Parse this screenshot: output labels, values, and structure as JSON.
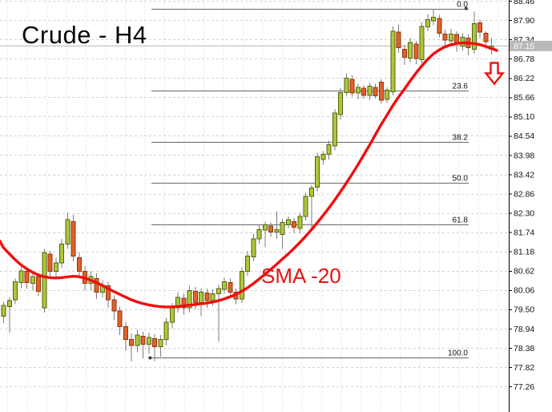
{
  "chart_label": "Crude - H4",
  "sma": {
    "label": "SMA -20",
    "period": 20,
    "color": "#f20d0d"
  },
  "price_axis": {
    "labels": [
      "88.46",
      "87.90",
      "87.34",
      "86.78",
      "86.22",
      "85.66",
      "85.10",
      "84.54",
      "83.98",
      "83.42",
      "82.86",
      "82.30",
      "81.74",
      "81.18",
      "80.62",
      "80.06",
      "79.50",
      "78.94",
      "78.38",
      "77.82",
      "77.26"
    ],
    "current_price": "87.15",
    "badge_bg": "#b9b9b9",
    "badge_text_color": "#ffffff"
  },
  "fibonacci": {
    "high": 88.24,
    "low": 78.09,
    "line_color": "#686868",
    "levels": [
      {
        "label": "0.0",
        "price": 88.24
      },
      {
        "label": "23.6",
        "price": 85.85
      },
      {
        "label": "38.2",
        "price": 84.36
      },
      {
        "label": "50.0",
        "price": 83.17
      },
      {
        "label": "61.8",
        "price": 81.97
      },
      {
        "label": "100.0",
        "price": 78.09
      }
    ]
  },
  "annotations": {
    "down_arrow": {
      "meaning": "sell-signal arrow below last candles",
      "color": "#e81212"
    }
  },
  "colors": {
    "background": "#ffffff",
    "bull": "#aac93a",
    "bull_border": "#55610f",
    "bear": "#e2612a",
    "bear_border": "#92350c",
    "wick": "#7b7b7b",
    "grid": "#d2d2d2",
    "current_price_line": "#c4c4c4",
    "axis_line": "#000000",
    "text": "#111111"
  },
  "chart_data": {
    "type": "candlestick",
    "symbol": "Crude",
    "timeframe": "H4",
    "title": "Crude - H4",
    "current_price": 87.15,
    "y_axis": {
      "first_label": 88.46,
      "last_label": 77.26,
      "step": 0.56
    },
    "legend": [
      "SMA -20"
    ],
    "candles": [
      [
        79.3,
        79.72,
        79.1,
        79.62
      ],
      [
        79.58,
        79.85,
        78.82,
        79.75
      ],
      [
        79.78,
        80.4,
        79.65,
        80.3
      ],
      [
        80.28,
        80.72,
        80.12,
        80.62
      ],
      [
        80.6,
        80.7,
        80.1,
        80.28
      ],
      [
        80.25,
        80.58,
        80.05,
        80.45
      ],
      [
        80.45,
        80.55,
        79.88,
        80.02
      ],
      [
        79.55,
        81.25,
        79.4,
        81.15
      ],
      [
        81.1,
        81.2,
        80.45,
        80.6
      ],
      [
        80.6,
        81.0,
        80.4,
        80.85
      ],
      [
        80.85,
        81.55,
        80.7,
        81.4
      ],
      [
        81.4,
        82.3,
        81.25,
        82.1
      ],
      [
        82.05,
        82.25,
        80.9,
        81.05
      ],
      [
        81.0,
        81.15,
        80.4,
        80.6
      ],
      [
        80.6,
        80.75,
        80.05,
        80.25
      ],
      [
        80.25,
        80.6,
        80.05,
        80.45
      ],
      [
        80.4,
        80.55,
        79.8,
        80.0
      ],
      [
        80.0,
        80.35,
        79.85,
        80.2
      ],
      [
        80.18,
        80.3,
        79.55,
        79.78
      ],
      [
        79.78,
        79.9,
        79.2,
        79.45
      ],
      [
        79.45,
        79.58,
        78.75,
        79.0
      ],
      [
        79.0,
        79.12,
        78.3,
        78.62
      ],
      [
        78.62,
        78.8,
        77.98,
        78.45
      ],
      [
        78.45,
        78.9,
        78.25,
        78.75
      ],
      [
        78.72,
        78.85,
        78.08,
        78.48
      ],
      [
        78.48,
        78.82,
        78.2,
        78.68
      ],
      [
        78.65,
        78.78,
        78.0,
        78.42
      ],
      [
        78.42,
        78.75,
        78.12,
        78.62
      ],
      [
        78.62,
        79.25,
        78.45,
        79.12
      ],
      [
        79.12,
        79.68,
        78.95,
        79.55
      ],
      [
        79.55,
        80.0,
        79.4,
        79.85
      ],
      [
        79.82,
        79.95,
        79.35,
        79.55
      ],
      [
        79.55,
        80.18,
        79.42,
        80.05
      ],
      [
        80.02,
        80.15,
        79.5,
        79.7
      ],
      [
        79.7,
        80.12,
        79.3,
        80.0
      ],
      [
        79.98,
        80.1,
        79.55,
        79.75
      ],
      [
        79.75,
        80.08,
        79.6,
        79.95
      ],
      [
        79.95,
        80.22,
        78.55,
        80.1
      ],
      [
        80.08,
        80.42,
        79.95,
        80.3
      ],
      [
        80.28,
        80.4,
        79.85,
        80.0
      ],
      [
        80.0,
        80.1,
        79.65,
        79.8
      ],
      [
        79.8,
        80.72,
        79.68,
        80.6
      ],
      [
        80.6,
        81.18,
        80.48,
        81.05
      ],
      [
        81.02,
        81.7,
        80.9,
        81.55
      ],
      [
        81.55,
        81.95,
        81.4,
        81.82
      ],
      [
        81.8,
        82.05,
        81.3,
        81.95
      ],
      [
        81.92,
        82.02,
        81.6,
        81.75
      ],
      [
        81.75,
        82.35,
        81.55,
        81.82
      ],
      [
        81.68,
        82.12,
        81.25,
        82.02
      ],
      [
        81.95,
        82.2,
        81.85,
        82.1
      ],
      [
        82.05,
        82.15,
        81.72,
        81.88
      ],
      [
        81.85,
        82.3,
        81.7,
        82.2
      ],
      [
        82.2,
        82.88,
        82.08,
        82.78
      ],
      [
        82.78,
        83.12,
        81.78,
        83.02
      ],
      [
        83.05,
        84.05,
        82.92,
        83.93
      ],
      [
        83.85,
        84.1,
        83.7,
        84.0
      ],
      [
        84.0,
        84.4,
        83.85,
        84.28
      ],
      [
        84.25,
        85.32,
        84.12,
        85.2
      ],
      [
        85.15,
        85.92,
        85.02,
        85.8
      ],
      [
        85.8,
        86.35,
        85.7,
        86.22
      ],
      [
        86.18,
        86.3,
        85.68,
        85.78
      ],
      [
        85.78,
        86.05,
        85.6,
        85.95
      ],
      [
        85.92,
        86.02,
        85.62,
        85.72
      ],
      [
        85.72,
        86.08,
        85.58,
        85.98
      ],
      [
        85.95,
        86.05,
        85.62,
        85.7
      ],
      [
        86.1,
        86.18,
        85.48,
        85.58
      ],
      [
        85.6,
        85.95,
        85.5,
        85.86
      ],
      [
        85.82,
        87.72,
        85.72,
        87.58
      ],
      [
        87.55,
        87.78,
        86.95,
        87.1
      ],
      [
        87.05,
        87.18,
        86.6,
        86.82
      ],
      [
        86.8,
        87.38,
        86.68,
        87.25
      ],
      [
        87.2,
        87.3,
        86.62,
        86.78
      ],
      [
        86.75,
        87.85,
        86.65,
        87.72
      ],
      [
        87.7,
        88.08,
        87.58,
        87.92
      ],
      [
        87.88,
        88.2,
        87.75,
        87.98
      ],
      [
        87.95,
        88.05,
        87.4,
        87.52
      ],
      [
        87.5,
        87.62,
        87.15,
        87.32
      ],
      [
        87.3,
        87.65,
        87.18,
        87.5
      ],
      [
        87.48,
        87.58,
        86.98,
        87.2
      ],
      [
        87.15,
        87.52,
        87.02,
        87.4
      ],
      [
        87.38,
        87.48,
        86.88,
        87.1
      ],
      [
        87.05,
        88.15,
        86.92,
        87.8
      ],
      [
        87.82,
        87.92,
        87.38,
        87.55
      ],
      [
        87.52,
        87.58,
        87.05,
        87.28
      ],
      [
        87.05,
        87.38,
        86.9,
        87.15
      ]
    ],
    "sma20": [
      81.3,
      81.12,
      80.95,
      80.8,
      80.68,
      80.58,
      80.5,
      80.45,
      80.42,
      80.41,
      80.42,
      80.44,
      80.46,
      80.45,
      80.41,
      80.35,
      80.28,
      80.2,
      80.11,
      80.02,
      79.94,
      79.86,
      79.78,
      79.72,
      79.67,
      79.63,
      79.6,
      79.58,
      79.57,
      79.57,
      79.58,
      79.6,
      79.62,
      79.64,
      79.66,
      79.68,
      79.71,
      79.75,
      79.8,
      79.86,
      79.93,
      80.02,
      80.12,
      80.24,
      80.37,
      80.51,
      80.65,
      80.8,
      80.95,
      81.1,
      81.26,
      81.43,
      81.61,
      81.8,
      82.0,
      82.21,
      82.43,
      82.66,
      82.9,
      83.15,
      83.41,
      83.68,
      83.96,
      84.25,
      84.55,
      84.85,
      85.12,
      85.4,
      85.65,
      85.88,
      86.12,
      86.35,
      86.56,
      86.75,
      86.91,
      87.03,
      87.12,
      87.18,
      87.22,
      87.24,
      87.24,
      87.22,
      87.19,
      87.14,
      87.08
    ]
  }
}
